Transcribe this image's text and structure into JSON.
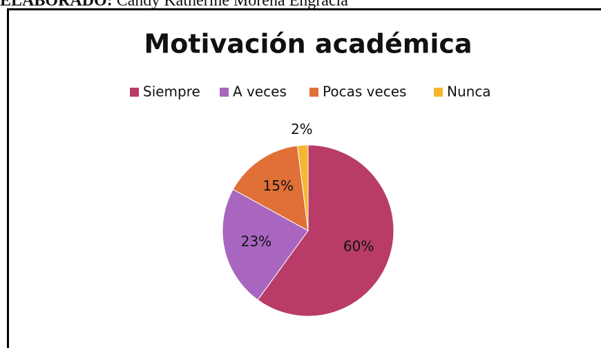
{
  "header": {
    "label": "ELABORADO:",
    "name": "Candy Katherine Morena Engracia"
  },
  "chart_data": {
    "type": "pie",
    "title": "Motivación académica",
    "categories": [
      "Siempre",
      "A veces",
      "Pocas veces",
      "Nunca"
    ],
    "values": [
      60,
      23,
      15,
      2
    ],
    "value_labels": [
      "60%",
      "23%",
      "15%",
      "2%"
    ],
    "colors": [
      "#b83c67",
      "#a866c0",
      "#e07038",
      "#f5b731"
    ],
    "legend": "top"
  }
}
